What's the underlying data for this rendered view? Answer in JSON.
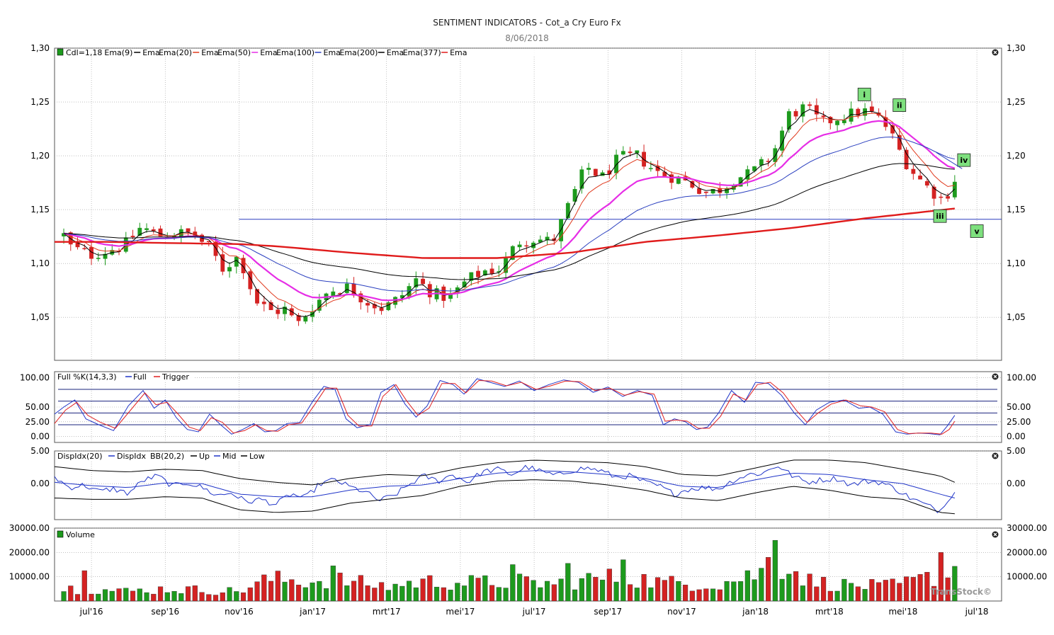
{
  "header": {
    "title": "SENTIMENT INDICATORS - Cot_a  Cry Euro Fx",
    "date": "8/06/2018"
  },
  "brand": "TransStock©",
  "colors": {
    "up_candle": "#1d9a1d",
    "down_candle": "#d42222",
    "ema9": "#000000",
    "ema20": "#e03a1e",
    "ema50": "#e62ee6",
    "ema100": "#2a3fbf",
    "ema200": "#000000",
    "ema377": "#e01b1b",
    "stoch_full": "#2035c8",
    "stoch_trigger": "#e02020",
    "disp": "#2035c8",
    "bb_up": "#000000",
    "bb_mid": "#2035c8",
    "bb_low": "#000000",
    "wave_label_bg": "#7ee07e",
    "grid": "#9a9a9a"
  },
  "chart_data": [
    {
      "type": "candlestick",
      "panel": "price",
      "legend": [
        "Cdl=1,18",
        "Ema(9)",
        "Ema",
        "Ema(20)",
        "Ema",
        "Ema(50)",
        "Ema",
        "Ema(100)",
        "Ema",
        "Ema(200)",
        "Ema",
        "Ema(377)",
        "Ema"
      ],
      "y_ticks": [
        "1,05",
        "1,10",
        "1,15",
        "1,20",
        "1,25",
        "1,30"
      ],
      "ylim": [
        1.01,
        1.3
      ],
      "x_ticks": [
        "jul'16",
        "sep'16",
        "nov'16",
        "jan'17",
        "mrt'17",
        "mei'17",
        "jul'17",
        "sep'17",
        "nov'17",
        "jan'18",
        "mrt'18",
        "mei'18",
        "jul'18"
      ],
      "x_tick_months": [
        1,
        3,
        5,
        7,
        9,
        11,
        13,
        15,
        17,
        19,
        21,
        23,
        25
      ],
      "xlim_months": [
        0.0,
        25.67
      ],
      "bars": 130,
      "close_path_months": [
        0.0,
        0.45,
        1.0,
        1.45,
        1.9,
        2.35,
        2.8,
        3.25,
        3.7,
        4.2,
        4.55,
        5.0,
        5.45,
        5.9,
        6.3,
        6.55,
        7.0,
        7.45,
        7.95,
        8.45,
        8.9,
        9.35,
        9.8,
        10.25,
        10.7,
        11.2,
        11.65,
        12.1,
        12.55,
        13.0,
        13.5,
        13.95,
        14.4,
        14.85,
        15.3,
        15.8,
        16.3,
        16.8,
        17.2,
        17.7,
        18.1,
        18.5,
        18.85,
        19.1,
        19.45,
        19.9,
        20.35,
        20.8,
        21.2,
        21.5,
        21.9,
        22.25,
        22.6,
        22.9,
        23.15,
        23.4,
        23.75,
        24.1,
        24.4
      ],
      "close_path_values": [
        1.14,
        1.115,
        1.108,
        1.112,
        1.117,
        1.134,
        1.126,
        1.128,
        1.128,
        1.115,
        1.095,
        1.107,
        1.065,
        1.055,
        1.058,
        1.042,
        1.06,
        1.075,
        1.078,
        1.065,
        1.058,
        1.068,
        1.085,
        1.072,
        1.068,
        1.085,
        1.093,
        1.095,
        1.12,
        1.123,
        1.12,
        1.155,
        1.19,
        1.18,
        1.198,
        1.2,
        1.185,
        1.18,
        1.175,
        1.165,
        1.17,
        1.18,
        1.183,
        1.19,
        1.2,
        1.238,
        1.245,
        1.23,
        1.235,
        1.238,
        1.242,
        1.238,
        1.225,
        1.205,
        1.19,
        1.18,
        1.168,
        1.158,
        1.178
      ],
      "horizontal_line": 1.141,
      "ema377_path_months": [
        0.0,
        1.5,
        3.0,
        5.0,
        6.0,
        8.0,
        10.0,
        12.0,
        14.0,
        16.0,
        18.0,
        20.0,
        22.0,
        24.4
      ],
      "ema377_path_values": [
        1.12,
        1.12,
        1.119,
        1.118,
        1.116,
        1.11,
        1.105,
        1.105,
        1.11,
        1.12,
        1.126,
        1.133,
        1.142,
        1.151
      ],
      "wave_labels": [
        {
          "label": "i",
          "month": 21.95,
          "value": 1.257
        },
        {
          "label": "ii",
          "month": 22.9,
          "value": 1.247
        },
        {
          "label": "iii",
          "month": 24.0,
          "value": 1.144
        },
        {
          "label": "iv",
          "month": 24.65,
          "value": 1.196
        },
        {
          "label": "v",
          "month": 25.0,
          "value": 1.13
        }
      ]
    },
    {
      "type": "line",
      "panel": "stochastic",
      "legend": [
        "Full %K(14,3,3)",
        "Full",
        "Trigger"
      ],
      "y_ticks": [
        "0.00",
        "25.00",
        "50.00",
        "100.00"
      ],
      "ylim": [
        -10,
        110
      ],
      "reference_lines": [
        20,
        40,
        60,
        80
      ],
      "series": [
        {
          "name": "Full",
          "x_months": [
            0.0,
            0.25,
            0.55,
            0.85,
            1.2,
            1.6,
            2.0,
            2.4,
            2.7,
            3.0,
            3.3,
            3.6,
            3.9,
            4.2,
            4.5,
            4.8,
            5.1,
            5.4,
            5.7,
            6.0,
            6.3,
            6.65,
            7.0,
            7.3,
            7.6,
            7.9,
            8.2,
            8.55,
            8.85,
            9.2,
            9.5,
            9.8,
            10.1,
            10.45,
            10.8,
            11.1,
            11.45,
            11.8,
            12.2,
            12.6,
            13.0,
            13.4,
            13.8,
            14.2,
            14.6,
            15.0,
            15.4,
            15.8,
            16.2,
            16.5,
            16.8,
            17.1,
            17.4,
            17.7,
            18.0,
            18.35,
            18.7,
            19.0,
            19.35,
            19.7,
            20.05,
            20.35,
            20.65,
            21.0,
            21.4,
            21.8,
            22.1,
            22.45,
            22.8,
            23.1,
            23.4,
            23.7,
            24.0,
            24.2,
            24.4
          ],
          "values": [
            38,
            50,
            62,
            30,
            20,
            10,
            52,
            78,
            48,
            62,
            32,
            12,
            8,
            38,
            20,
            4,
            12,
            22,
            8,
            10,
            22,
            24,
            60,
            85,
            80,
            30,
            15,
            20,
            75,
            88,
            55,
            33,
            52,
            95,
            88,
            72,
            98,
            92,
            85,
            94,
            78,
            88,
            96,
            92,
            75,
            84,
            68,
            78,
            70,
            20,
            30,
            25,
            12,
            16,
            40,
            78,
            58,
            92,
            90,
            70,
            40,
            20,
            45,
            58,
            62,
            48,
            50,
            38,
            8,
            4,
            6,
            5,
            3,
            18,
            36
          ]
        },
        {
          "name": "Trigger",
          "x_months": [
            0.0,
            0.3,
            0.6,
            0.9,
            1.25,
            1.65,
            2.05,
            2.45,
            2.75,
            3.05,
            3.35,
            3.65,
            3.95,
            4.25,
            4.55,
            4.85,
            5.15,
            5.45,
            5.75,
            6.05,
            6.35,
            6.7,
            7.05,
            7.35,
            7.65,
            7.95,
            8.25,
            8.6,
            8.9,
            9.25,
            9.55,
            9.85,
            10.15,
            10.5,
            10.85,
            11.15,
            11.5,
            11.85,
            12.25,
            12.65,
            13.05,
            13.45,
            13.85,
            14.25,
            14.65,
            15.05,
            15.45,
            15.85,
            16.25,
            16.55,
            16.85,
            17.15,
            17.45,
            17.75,
            18.05,
            18.4,
            18.75,
            19.05,
            19.4,
            19.75,
            20.1,
            20.4,
            20.7,
            21.05,
            21.45,
            21.85,
            22.15,
            22.5,
            22.85,
            23.15,
            23.45,
            23.75,
            24.05,
            24.25,
            24.4
          ],
          "values": [
            22,
            45,
            58,
            36,
            24,
            14,
            44,
            74,
            54,
            58,
            38,
            16,
            10,
            32,
            24,
            6,
            10,
            20,
            10,
            9,
            20,
            23,
            54,
            82,
            82,
            36,
            18,
            18,
            68,
            88,
            60,
            36,
            48,
            90,
            90,
            74,
            95,
            94,
            86,
            92,
            80,
            86,
            94,
            93,
            78,
            82,
            70,
            76,
            72,
            26,
            28,
            26,
            14,
            14,
            34,
            72,
            62,
            88,
            92,
            74,
            45,
            24,
            40,
            55,
            62,
            52,
            50,
            42,
            12,
            5,
            6,
            6,
            4,
            12,
            26
          ]
        }
      ]
    },
    {
      "type": "line",
      "panel": "disparity",
      "legend": [
        "DispIdx(20)",
        "DispIdx",
        "BB(20,2)",
        "Up",
        "Mid",
        "Low"
      ],
      "y_ticks": [
        "0.00",
        "5.00"
      ],
      "ylim": [
        -5.5,
        5.0
      ],
      "series": [
        {
          "name": "DispIdx",
          "x_months": [
            0.0,
            0.4,
            0.8,
            1.2,
            1.6,
            2.0,
            2.4,
            2.8,
            3.2,
            3.6,
            4.0,
            4.4,
            4.8,
            5.2,
            5.6,
            6.0,
            6.4,
            6.8,
            7.2,
            7.6,
            8.0,
            8.4,
            8.8,
            9.2,
            9.6,
            10.0,
            10.4,
            10.8,
            11.2,
            11.6,
            12.0,
            12.4,
            12.8,
            13.2,
            13.6,
            14.0,
            14.4,
            14.8,
            15.2,
            15.6,
            16.0,
            16.4,
            16.8,
            17.2,
            17.6,
            18.0,
            18.4,
            18.8,
            19.2,
            19.6,
            20.0,
            20.4,
            20.8,
            21.2,
            21.6,
            22.0,
            22.4,
            22.8,
            23.2,
            23.6,
            24.0,
            24.2,
            24.4
          ],
          "values": [
            1.0,
            -0.6,
            -0.2,
            -1.2,
            -0.8,
            -1.5,
            0.5,
            1.2,
            -0.4,
            0.2,
            -0.6,
            -1.8,
            -1.4,
            -2.8,
            -2.4,
            -3.2,
            -1.6,
            -2.2,
            0.0,
            0.6,
            -0.5,
            -1.2,
            -2.6,
            -1.8,
            -0.2,
            1.2,
            0.4,
            1.4,
            0.2,
            1.8,
            2.2,
            1.4,
            2.6,
            1.8,
            1.2,
            2.0,
            2.4,
            2.0,
            1.0,
            1.2,
            0.2,
            -0.4,
            -1.6,
            -0.8,
            -0.6,
            -0.8,
            0.5,
            1.4,
            1.6,
            2.8,
            1.2,
            0.2,
            0.6,
            0.8,
            -0.2,
            0.4,
            0.2,
            -0.8,
            -2.2,
            -3.2,
            -4.2,
            -2.4,
            -1.3
          ]
        },
        {
          "name": "Up",
          "x_months": [
            0.0,
            1.0,
            2.0,
            3.0,
            4.0,
            5.0,
            6.0,
            7.0,
            8.0,
            9.0,
            10.0,
            11.0,
            12.0,
            13.0,
            14.0,
            15.0,
            16.0,
            17.0,
            18.0,
            19.0,
            20.0,
            21.0,
            22.0,
            23.0,
            24.0,
            24.4
          ],
          "values": [
            2.6,
            2.0,
            1.8,
            2.2,
            2.0,
            0.8,
            0.2,
            -0.2,
            0.8,
            1.4,
            1.2,
            2.4,
            3.2,
            3.6,
            3.4,
            3.2,
            2.6,
            1.4,
            1.2,
            2.4,
            3.6,
            3.6,
            3.2,
            2.2,
            1.2,
            0.2
          ]
        },
        {
          "name": "Mid",
          "x_months": [
            0.0,
            1.0,
            2.0,
            3.0,
            4.0,
            5.0,
            6.0,
            7.0,
            8.0,
            9.0,
            10.0,
            11.0,
            12.0,
            13.0,
            14.0,
            15.0,
            16.0,
            17.0,
            18.0,
            19.0,
            20.0,
            21.0,
            22.0,
            23.0,
            24.0,
            24.4
          ],
          "values": [
            0.2,
            -0.3,
            -0.6,
            0.1,
            0.0,
            -1.6,
            -2.0,
            -2.0,
            -1.0,
            -0.4,
            -0.2,
            0.8,
            1.6,
            2.0,
            1.8,
            1.4,
            0.8,
            -0.4,
            -0.6,
            0.6,
            1.6,
            1.4,
            0.6,
            0.0,
            -1.6,
            -2.2
          ]
        },
        {
          "name": "Low",
          "x_months": [
            0.0,
            1.0,
            2.0,
            3.0,
            4.0,
            5.0,
            6.0,
            7.0,
            8.0,
            9.0,
            10.0,
            11.0,
            12.0,
            13.0,
            14.0,
            15.0,
            16.0,
            17.0,
            18.0,
            19.0,
            20.0,
            21.0,
            22.0,
            23.0,
            24.0,
            24.4
          ],
          "values": [
            -2.2,
            -2.4,
            -2.4,
            -2.0,
            -2.2,
            -4.0,
            -4.4,
            -4.2,
            -3.0,
            -2.4,
            -1.8,
            -0.4,
            0.4,
            0.6,
            0.4,
            -0.2,
            -1.0,
            -2.2,
            -2.6,
            -1.4,
            -0.4,
            -1.0,
            -2.0,
            -2.4,
            -4.4,
            -4.6
          ]
        }
      ]
    },
    {
      "type": "bar",
      "panel": "volume",
      "legend": [
        "Volume"
      ],
      "y_ticks": [
        "10000.00",
        "20000.00",
        "30000.00"
      ],
      "ylim": [
        0,
        30000
      ],
      "bars": 130,
      "volume_level_path_months": [
        0.0,
        2.0,
        3.0,
        5.0,
        5.8,
        7.0,
        7.5,
        9.0,
        10.0,
        11.5,
        12.5,
        13.5,
        14.5,
        15.5,
        16.5,
        18.0,
        18.5,
        19.2,
        19.8,
        20.5,
        21.5,
        22.5,
        23.0,
        23.8,
        24.4
      ],
      "volume_level_path_values": [
        5500,
        4000,
        5000,
        4000,
        9000,
        8000,
        9000,
        6000,
        8000,
        7500,
        8000,
        7000,
        9000,
        10000,
        7500,
        7000,
        9000,
        12000,
        15000,
        8000,
        6500,
        6000,
        7000,
        10000,
        13000
      ],
      "volume_spikes": [
        {
          "month": 0.8,
          "value": 12500
        },
        {
          "month": 7.5,
          "value": 14500
        },
        {
          "month": 12.5,
          "value": 15000
        },
        {
          "month": 14.0,
          "value": 15500
        },
        {
          "month": 15.5,
          "value": 17000
        },
        {
          "month": 19.6,
          "value": 25000
        },
        {
          "month": 19.4,
          "value": 18000
        },
        {
          "month": 24.0,
          "value": 20000
        }
      ]
    }
  ]
}
